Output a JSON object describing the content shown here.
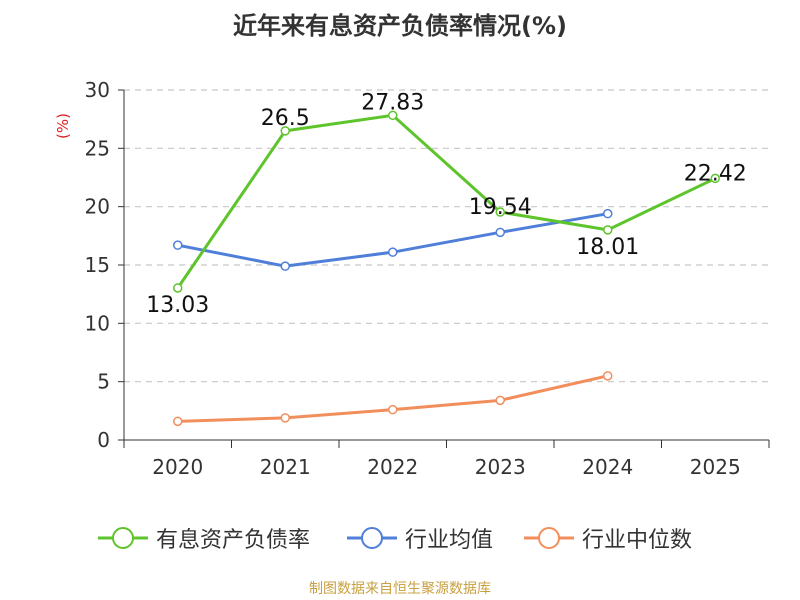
{
  "chart_data": {
    "type": "line",
    "title": "近年来有息资产负债率情况(%)",
    "ylabel": "(%)",
    "xlabel": "",
    "categories": [
      "2020",
      "2021",
      "2022",
      "2023",
      "2024",
      "2025"
    ],
    "ylim": [
      0,
      30
    ],
    "yticks": [
      "0",
      "5",
      "10",
      "15",
      "20",
      "25",
      "30"
    ],
    "grid": true,
    "legend_position": "bottom",
    "series": [
      {
        "name": "有息资产负债率",
        "color": "#5ec42b",
        "values": [
          13.03,
          26.5,
          27.83,
          19.54,
          18.01,
          22.42
        ],
        "labels": [
          "13.03",
          "26.5",
          "27.83",
          "19.54",
          "18.01",
          "22.42"
        ]
      },
      {
        "name": "行业均值",
        "color": "#4f7fd9",
        "values": [
          16.7,
          14.9,
          16.1,
          17.8,
          19.4,
          null
        ]
      },
      {
        "name": "行业中位数",
        "color": "#f28e5b",
        "values": [
          1.6,
          1.9,
          2.6,
          3.4,
          5.5,
          null
        ]
      }
    ]
  },
  "source": "制图数据来自恒生聚源数据库"
}
